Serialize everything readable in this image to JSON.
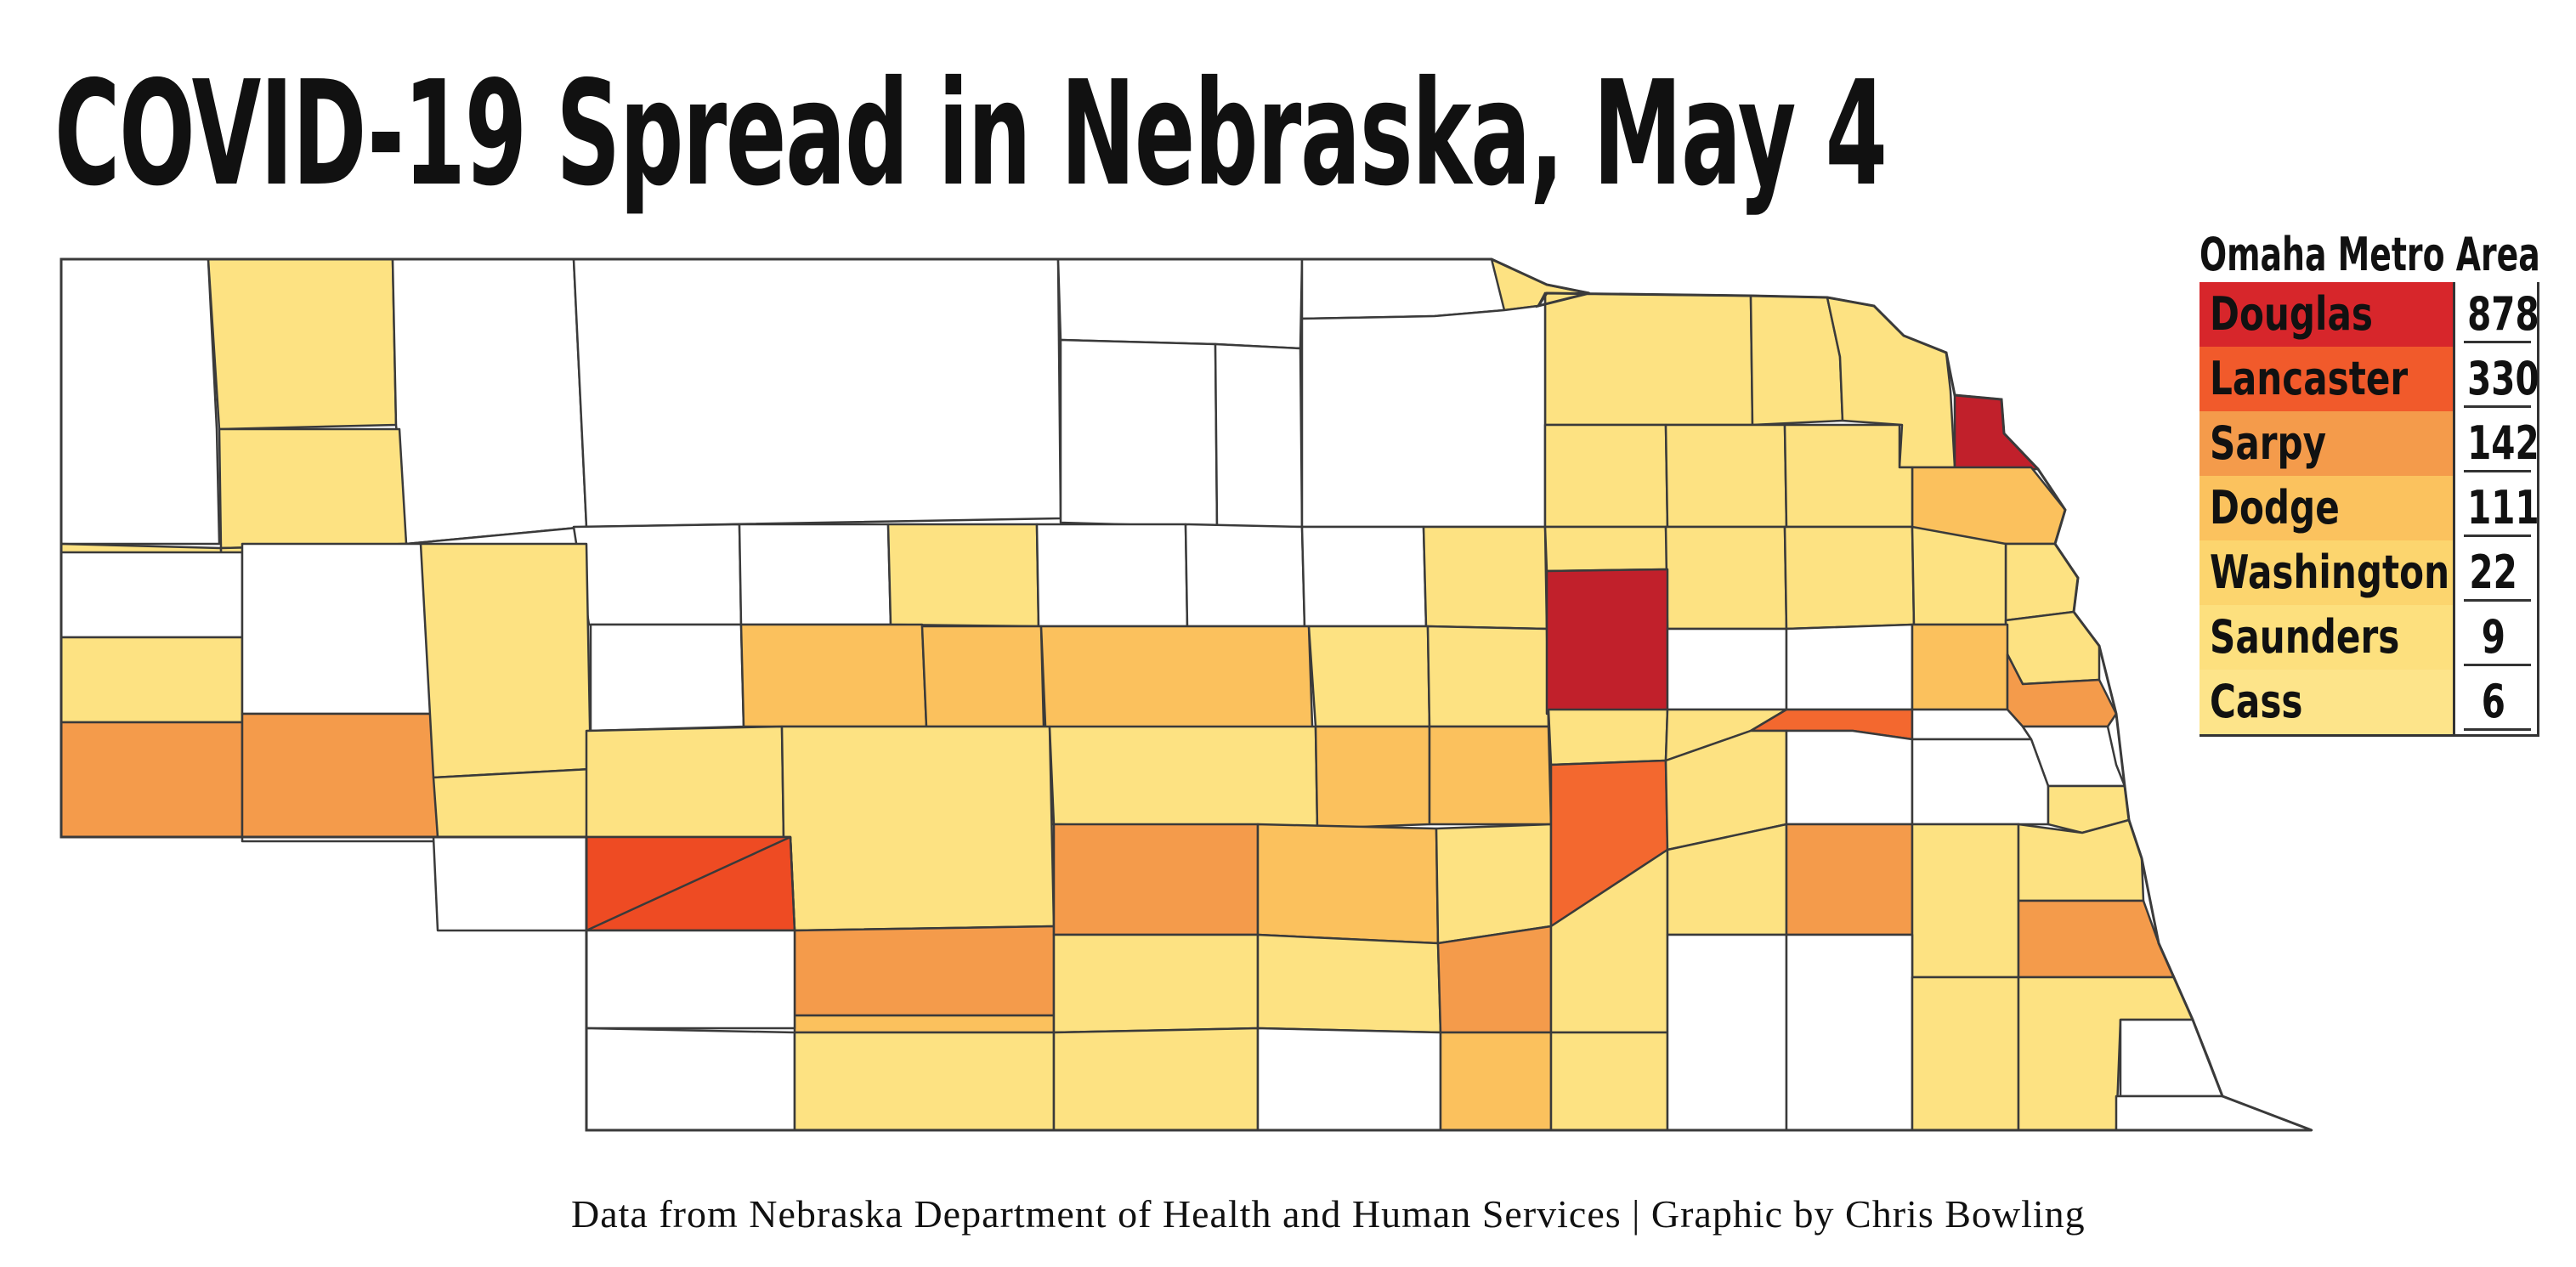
{
  "title": "COVID-19 Spread in Nebraska, May 4",
  "credit": "Data from Nebraska Department of Health and Human Services | Graphic by Chris Bowling",
  "legend": {
    "header": "Omaha Metro Area",
    "rows": [
      {
        "county": "Douglas",
        "count": "878",
        "color": "#d7262b"
      },
      {
        "county": "Lancaster",
        "count": "330",
        "color": "#f15a2b"
      },
      {
        "county": "Sarpy",
        "count": "142",
        "color": "#f49b4b"
      },
      {
        "county": "Dodge",
        "count": "111",
        "color": "#fbc25e"
      },
      {
        "county": "Washington",
        "count": "22",
        "color": "#fcd56e"
      },
      {
        "county": "Saunders",
        "count": "9",
        "color": "#fde07e"
      },
      {
        "county": "Cass",
        "count": "6",
        "color": "#fde48a"
      }
    ]
  },
  "map": {
    "counties": [
      {
        "level": 0
      },
      {
        "level": 1
      },
      {
        "level": 0
      },
      {
        "level": 1
      },
      {
        "level": 0
      },
      {
        "level": 0
      },
      {
        "level": 0
      },
      {
        "level": 1
      },
      {
        "level": 0
      },
      {
        "level": 0
      },
      {
        "level": 1
      },
      {
        "level": 1
      },
      {
        "level": 0
      },
      {
        "level": 1
      },
      {
        "level": 1
      },
      {
        "level": 6
      },
      {
        "level": 2
      },
      {
        "level": 1
      },
      {
        "level": 1
      },
      {
        "level": 1
      },
      {
        "level": 1
      },
      {
        "level": 1
      },
      {
        "level": 0
      },
      {
        "level": 0
      },
      {
        "level": 0
      },
      {
        "level": 1
      },
      {
        "level": 0
      },
      {
        "level": 0
      },
      {
        "level": 0
      },
      {
        "level": 1
      },
      {
        "level": 1
      },
      {
        "level": 1
      },
      {
        "level": 1
      },
      {
        "level": 1
      },
      {
        "level": 1
      },
      {
        "level": 0
      },
      {
        "level": 1
      },
      {
        "level": 3
      },
      {
        "level": 0
      },
      {
        "level": 3
      },
      {
        "level": 1
      },
      {
        "level": 1
      },
      {
        "level": 0
      },
      {
        "level": 2
      },
      {
        "level": 2
      },
      {
        "level": 2
      },
      {
        "level": 1
      },
      {
        "level": 1
      },
      {
        "level": 6
      },
      {
        "level": 0
      },
      {
        "level": 0
      },
      {
        "level": 2
      },
      {
        "level": 3
      },
      {
        "level": 1
      },
      {
        "level": 1
      },
      {
        "level": 1
      },
      {
        "level": 2
      },
      {
        "level": 2
      },
      {
        "level": 1
      },
      {
        "level": 1
      },
      {
        "level": 4
      },
      {
        "level": 0
      },
      {
        "level": 0
      },
      {
        "level": 5
      },
      {
        "level": 3
      },
      {
        "level": 6
      },
      {
        "level": 3
      },
      {
        "level": 2
      },
      {
        "level": 1
      },
      {
        "level": 4
      },
      {
        "level": 1
      },
      {
        "level": 0
      },
      {
        "level": 0
      },
      {
        "level": 1
      },
      {
        "level": 2
      },
      {
        "level": 1
      },
      {
        "level": 1
      },
      {
        "level": 3
      },
      {
        "level": 1
      },
      {
        "level": 1
      },
      {
        "level": 3
      },
      {
        "level": 1
      },
      {
        "level": 1
      },
      {
        "level": 0
      },
      {
        "level": 0
      },
      {
        "level": 1
      },
      {
        "level": 1
      },
      {
        "level": 0
      },
      {
        "level": 2
      },
      {
        "level": 1
      },
      {
        "level": 0
      },
      {
        "level": 0
      },
      {
        "level": 1
      },
      {
        "level": 3
      },
      {
        "level": 1
      },
      {
        "level": 0
      }
    ],
    "colors": [
      "#ffffff",
      "#fde282",
      "#fbc15d",
      "#f49b4b",
      "#f3682f",
      "#ee4b23",
      "#c1202b"
    ]
  }
}
